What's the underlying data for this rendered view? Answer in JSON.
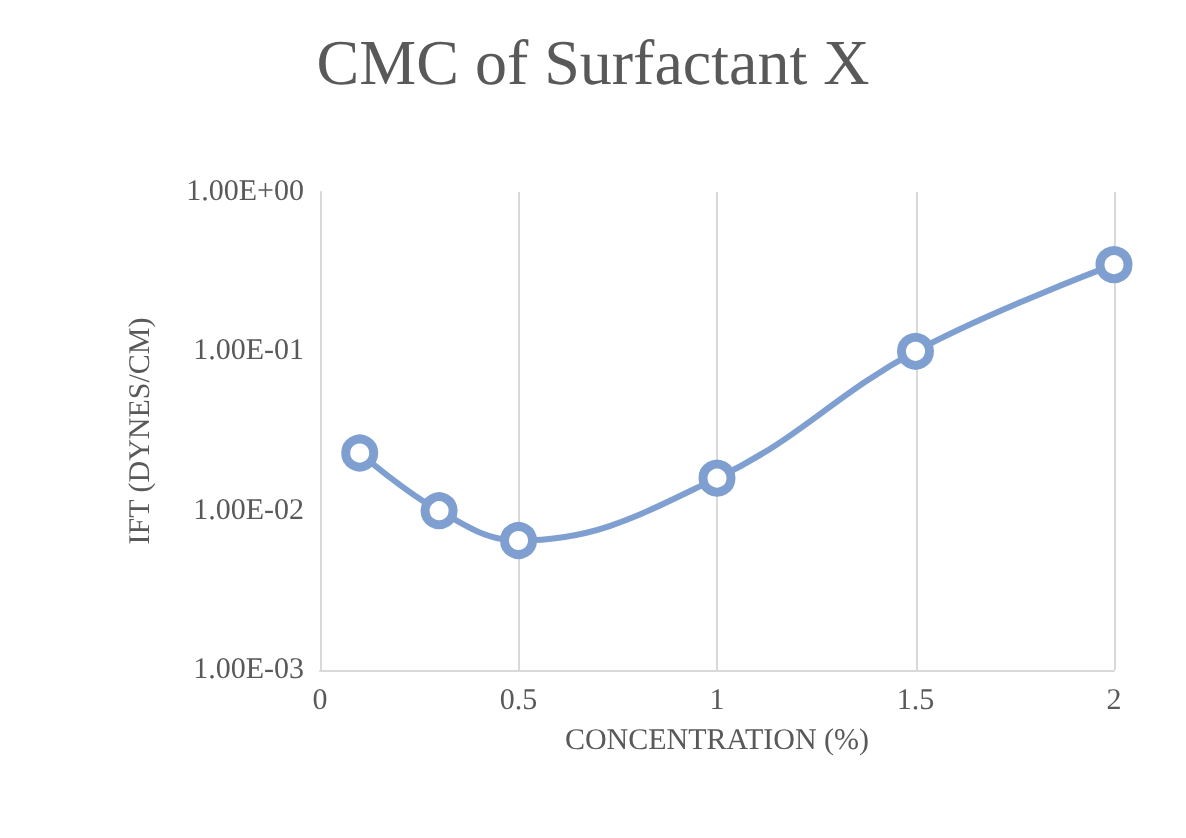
{
  "chart_data": {
    "type": "line",
    "title": "CMC of Surfactant X",
    "xlabel": "CONCENTRATION (%)",
    "ylabel": "IFT (DYNES/CM)",
    "x": [
      0.1,
      0.3,
      0.5,
      1,
      1.5,
      2
    ],
    "series": [
      {
        "color": "#7f9fd0",
        "values": [
          0.023,
          0.01,
          0.0065,
          0.016,
          0.1,
          0.35
        ]
      }
    ],
    "xlim": [
      0,
      2
    ],
    "xticks": [
      0,
      0.5,
      1,
      1.5,
      2
    ],
    "ylim": [
      0.001,
      1
    ],
    "yticks": [
      {
        "value": 0.001,
        "label": "1.00E-03"
      },
      {
        "value": 0.01,
        "label": "1.00E-02"
      },
      {
        "value": 0.1,
        "label": "1.00E-01"
      },
      {
        "value": 1,
        "label": "1.00E+00"
      }
    ],
    "log": "y",
    "grid": "x",
    "marker": "circle",
    "line_style": "solid"
  }
}
